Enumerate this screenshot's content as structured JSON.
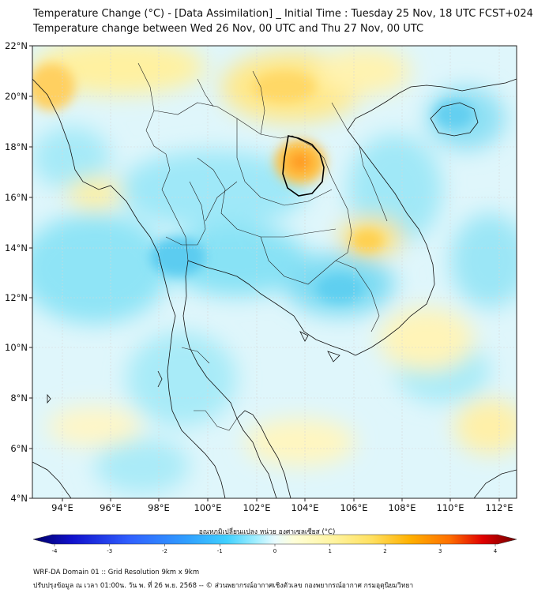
{
  "header": {
    "title_line1": "Temperature Change (°C) - [Data Assimilation] _ Initial Time : Tuesday 25 Nov, 18 UTC FCST+024",
    "title_line2": "Temperature change between Wed 26 Nov, 00 UTC and Thu 27 Nov, 00 UTC"
  },
  "map": {
    "lat_labels": [
      "22°N",
      "20°N",
      "18°N",
      "16°N",
      "14°N",
      "12°N",
      "10°N",
      "8°N",
      "6°N",
      "4°N"
    ],
    "lon_labels": [
      "94°E",
      "96°E",
      "98°E",
      "100°E",
      "102°E",
      "104°E",
      "106°E",
      "108°E",
      "110°E",
      "112°E"
    ]
  },
  "colorbar": {
    "title": "อุณหภูมิเปลี่ยนแปลง หน่วย องศาเซลเซียส (°C)",
    "ticks": [
      "-4",
      "-3",
      "-2",
      "-1",
      "0",
      "1",
      "2",
      "3",
      "4"
    ],
    "colors": [
      "#000066",
      "#1010cc",
      "#3060ff",
      "#30a0ff",
      "#40d0ff",
      "#a0eeff",
      "#e8fbff",
      "#ffffd8",
      "#fff4a0",
      "#ffe060",
      "#ffb000",
      "#ff7000",
      "#e00000",
      "#700000"
    ]
  },
  "footer": {
    "line1": "WRF-DA Domain 01 :: Grid Resolution 9km x 9km",
    "line2": "ปรับปรุงข้อมูล ณ เวลา 01:00น. วัน พ. ที่ 26 พ.ย. 2568 -- © ส่วนพยากรณ์อากาศเชิงตัวเลข กองพยากรณ์อากาศ กรมอุตุนิยมวิทยา"
  }
}
